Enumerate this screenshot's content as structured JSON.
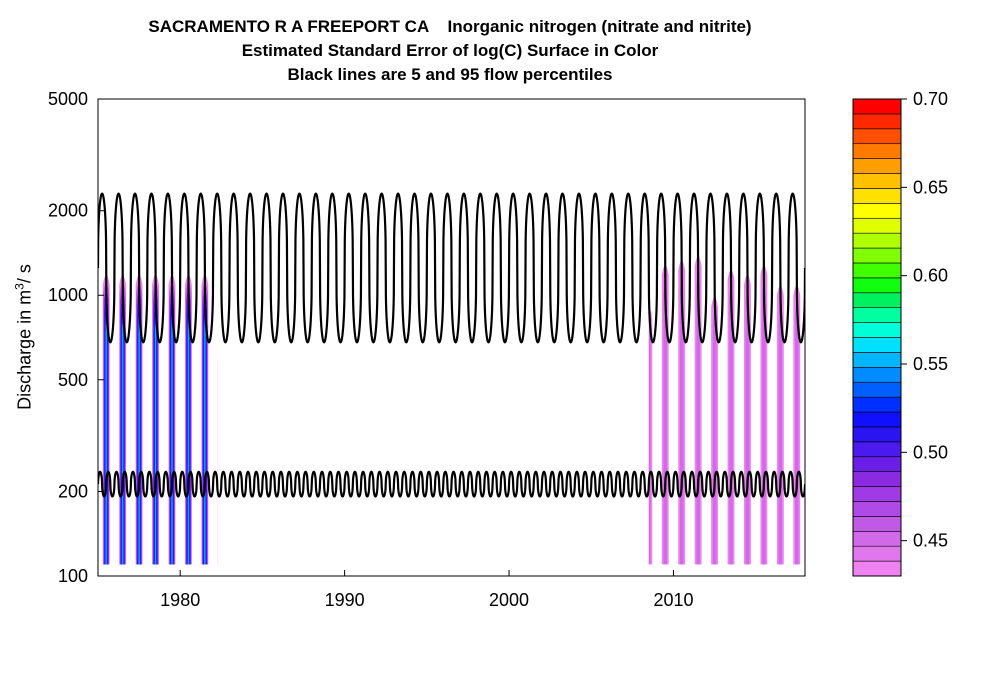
{
  "chart_data": {
    "type": "heatmap",
    "title_lines": [
      "SACRAMENTO R A FREEPORT CA    Inorganic nitrogen (nitrate and nitrite)",
      "Estimated Standard Error of log(C) Surface in Color",
      "Black lines are 5 and 95 flow percentiles"
    ],
    "ylabel": {
      "prefix": "Discharge in m",
      "sup": "3",
      "suffix": "/ s"
    },
    "y_scale": "log",
    "xlim": [
      1975,
      2018
    ],
    "ylim": [
      100,
      5000
    ],
    "x_ticks": [
      "1980",
      "1990",
      "2000",
      "2010"
    ],
    "x_tick_values": [
      1980,
      1990,
      2000,
      2010
    ],
    "y_ticks": [
      "100",
      "200",
      "500",
      "1000",
      "2000",
      "5000"
    ],
    "y_tick_values": [
      100,
      200,
      500,
      1000,
      2000,
      5000
    ],
    "colorbar": {
      "min": 0.43,
      "max": 0.7,
      "tick_labels": [
        "0.45",
        "0.50",
        "0.55",
        "0.60",
        "0.65",
        "0.70"
      ],
      "tick_values": [
        0.45,
        0.5,
        0.55,
        0.6,
        0.65,
        0.7
      ],
      "colors": [
        "#ee82ee",
        "#e077ec",
        "#d06ae8",
        "#c05ae6",
        "#b04ae6",
        "#a03ae6",
        "#8a2be2",
        "#6a1ee6",
        "#4b1aee",
        "#2a14f2",
        "#1010ff",
        "#0030ff",
        "#0060ff",
        "#008cff",
        "#00b6ff",
        "#00e0ff",
        "#00ffd8",
        "#00ffa0",
        "#00f060",
        "#10ff10",
        "#40ff00",
        "#80ff00",
        "#b0ff00",
        "#e0ff00",
        "#ffff00",
        "#ffe000",
        "#ffc000",
        "#ff9e00",
        "#ff7a00",
        "#ff5000",
        "#ff2800",
        "#ff0000"
      ]
    },
    "percentile_95": {
      "low": 680,
      "high": 2300,
      "period_years": 1
    },
    "percentile_5": {
      "low": 192,
      "high": 235,
      "period_years": 0.5
    },
    "surface_early": {
      "x_range": [
        1975,
        1982.3
      ],
      "y_range": [
        110,
        1200
      ],
      "band_colors": [
        "#ee82ee",
        "#c05ae6",
        "#8a2be2",
        "#4b1aee",
        "#1010ff",
        "#0060ff",
        "#00b6ff"
      ]
    },
    "surface_late": {
      "x_range": [
        2008.5,
        2018
      ],
      "y_range": [
        110,
        1400
      ],
      "band_colors": [
        "#ee82ee",
        "#d06ae8"
      ]
    }
  }
}
